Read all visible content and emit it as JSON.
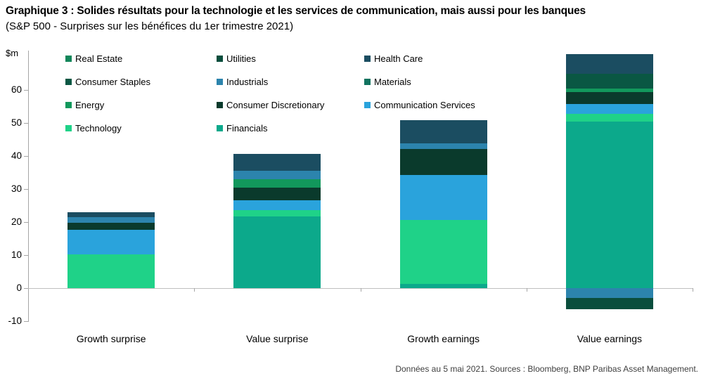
{
  "header": {
    "title": "Graphique 3 : Solides résultats pour la technologie et les services de communication, mais aussi pour les banques",
    "subtitle": "(S&P 500 - Surprises sur les bénéfices du 1er trimestre 2021)"
  },
  "footer": {
    "source": "Données au 5 mai 2021. Sources : Bloomberg, BNP Paribas Asset Management."
  },
  "chart_data": {
    "type": "bar",
    "stacked": true,
    "title": "S&P 500 - Surprises sur les bénéfices du 1er trimestre 2021",
    "ylabel": "$m",
    "unit_label": "$m",
    "categories": [
      "Growth surprise",
      "Value surprise",
      "Growth earnings",
      "Value earnings"
    ],
    "yticks": [
      -10,
      0,
      10,
      20,
      30,
      40,
      50,
      60
    ],
    "ylim": [
      -13,
      71
    ],
    "grid": false,
    "legend_position": "top-left",
    "legend_display_order": [
      "Real Estate",
      "Utilities",
      "Health Care",
      "Consumer Staples",
      "Industrials",
      "Materials",
      "Energy",
      "Consumer Discretionary",
      "Communication Services",
      "Technology",
      "Financials"
    ],
    "series": [
      {
        "name": "Financials",
        "color": "#0CA98B",
        "values": [
          0,
          21.7,
          1.2,
          50.5
        ]
      },
      {
        "name": "Technology",
        "color": "#1FD288",
        "values": [
          10.3,
          1.9,
          19.5,
          2.3
        ]
      },
      {
        "name": "Communication Services",
        "color": "#2AA3DC",
        "values": [
          7.4,
          3.0,
          13.6,
          3.0
        ]
      },
      {
        "name": "Consumer Discretionary",
        "color": "#0A3A2C",
        "values": [
          2.1,
          3.8,
          7.9,
          3.5
        ]
      },
      {
        "name": "Energy",
        "color": "#12985C",
        "values": [
          0,
          2.6,
          0,
          1.1
        ]
      },
      {
        "name": "Materials",
        "color": "#11735F",
        "values": [
          0,
          0,
          0,
          0
        ]
      },
      {
        "name": "Industrials",
        "color": "#2C84AD",
        "values": [
          1.7,
          2.6,
          1.7,
          -3.0
        ]
      },
      {
        "name": "Consumer Staples",
        "color": "#0A5743",
        "values": [
          0,
          0,
          0,
          4.5
        ]
      },
      {
        "name": "Health Care",
        "color": "#1B4D61",
        "values": [
          1.4,
          5.1,
          7.0,
          5.9
        ]
      },
      {
        "name": "Utilities",
        "color": "#0A4E3D",
        "values": [
          0,
          0,
          0,
          -3.3
        ]
      },
      {
        "name": "Real Estate",
        "color": "#12865A",
        "values": [
          0,
          0,
          0,
          0
        ]
      }
    ],
    "totals_positive": [
      22.9,
      40.7,
      50.9,
      70.8
    ],
    "totals_negative": [
      0,
      0,
      0,
      -6.3
    ]
  }
}
